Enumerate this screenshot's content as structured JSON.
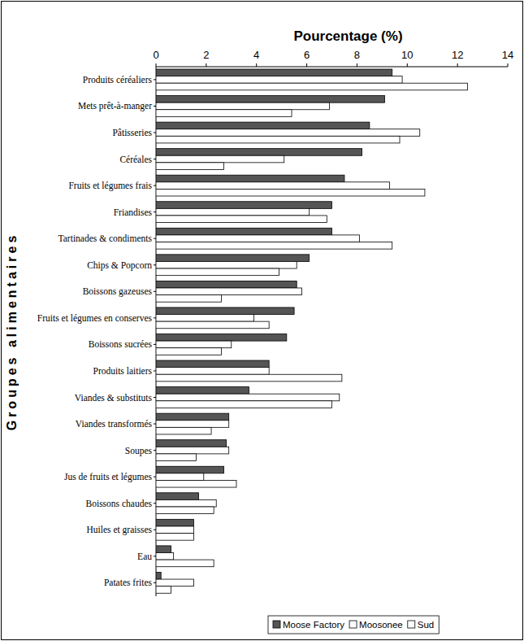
{
  "chart_data": {
    "type": "bar",
    "orientation": "horizontal",
    "x_label": "Pourcentage (%)",
    "y_label": "Groupes alimentaires",
    "categories": [
      "Produits céréaliers",
      "Mets prêt-à-manger",
      "Pâtisseries",
      "Céréales",
      "Fruits et légumes frais",
      "Friandises",
      "Tartinades & condiments",
      "Chips & Popcorn",
      "Boissons gazeuses",
      "Fruits et légumes en conserves",
      "Boissons sucrées",
      "Produits laitiers",
      "Viandes & substituts",
      "Viandes transformés",
      "Soupes",
      "Jus de fruits et légumes",
      "Boissons chaudes",
      "Huiles et graisses",
      "Eau",
      "Patates frites"
    ],
    "series": [
      {
        "name": "Moose Factory",
        "color": "#555555",
        "values": [
          9.4,
          9.1,
          8.5,
          8.2,
          7.5,
          7.0,
          7.0,
          6.1,
          5.6,
          5.5,
          5.2,
          4.5,
          3.7,
          2.9,
          2.8,
          2.7,
          1.7,
          1.5,
          0.6,
          0.2
        ]
      },
      {
        "name": "Moosonee",
        "color": "#ffffff",
        "values": [
          9.8,
          6.9,
          10.5,
          5.1,
          9.3,
          6.1,
          8.1,
          5.6,
          5.8,
          3.9,
          3.0,
          4.5,
          7.3,
          2.9,
          2.9,
          1.9,
          2.4,
          1.5,
          0.7,
          1.5
        ]
      },
      {
        "name": "Sud",
        "color": "#ffffff",
        "values": [
          12.4,
          5.4,
          9.7,
          2.7,
          10.7,
          6.8,
          9.4,
          4.9,
          2.6,
          4.5,
          2.6,
          7.4,
          7.0,
          2.2,
          1.6,
          3.2,
          2.3,
          1.5,
          2.3,
          0.6
        ]
      }
    ],
    "xlim": [
      0,
      14
    ],
    "xticks": [
      0,
      2,
      4,
      6,
      8,
      10,
      12,
      14
    ],
    "grid": false,
    "legend": "bottom"
  }
}
